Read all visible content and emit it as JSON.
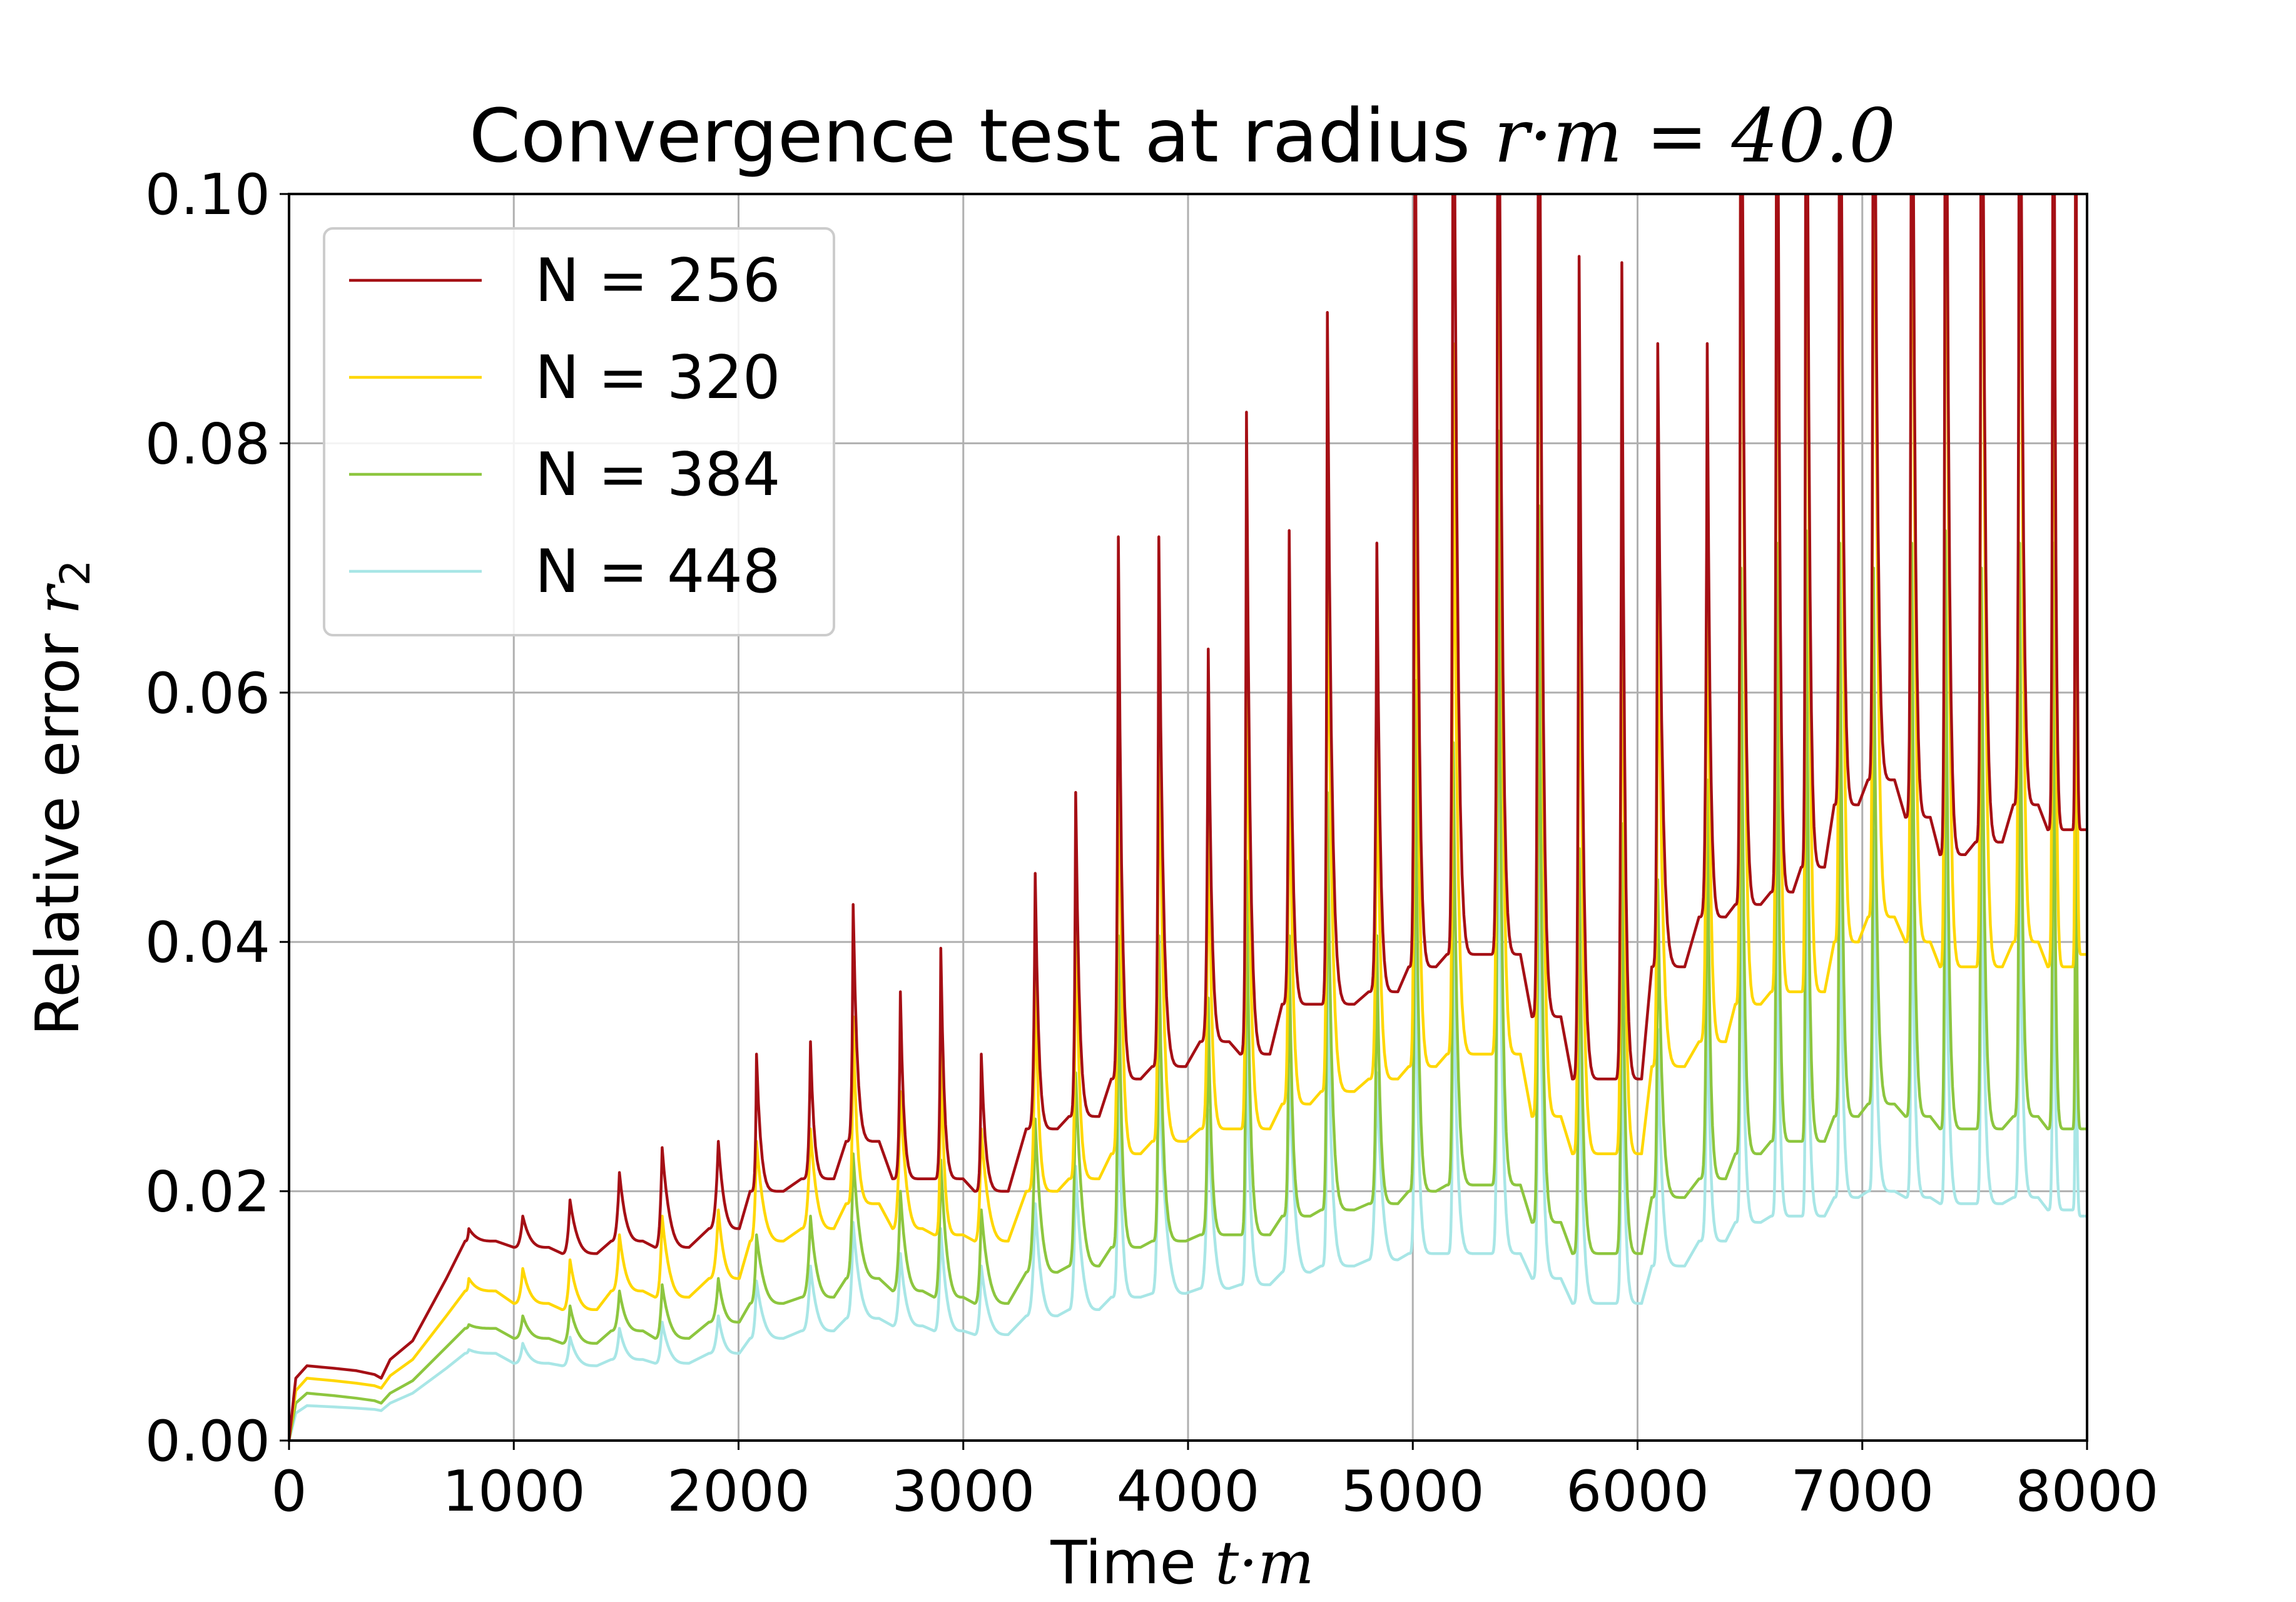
{
  "chart_data": {
    "type": "line",
    "title": {
      "prefix": "Convergence test at radius ",
      "math": "r·m = 40.0"
    },
    "xlabel": {
      "text": "Time ",
      "math": "t·m"
    },
    "ylabel": {
      "text": "Relative error ",
      "math": "r",
      "sub": "2"
    },
    "xlim": [
      0,
      8000
    ],
    "ylim": [
      0,
      0.1
    ],
    "xticks": [
      "0",
      "1000",
      "2000",
      "3000",
      "4000",
      "5000",
      "6000",
      "7000",
      "8000"
    ],
    "yticks": [
      "0.00",
      "0.02",
      "0.04",
      "0.06",
      "0.08",
      "0.10"
    ],
    "grid": true,
    "legend_position": "top-left",
    "x_peaks": [
      800,
      1040,
      1250,
      1470,
      1660,
      1910,
      2080,
      2320,
      2510,
      2720,
      2900,
      3080,
      3320,
      3500,
      3690,
      3870,
      4090,
      4260,
      4450,
      4620,
      4840,
      5010,
      5180,
      5380,
      5560,
      5740,
      5930,
      6090,
      6310,
      6460,
      6620,
      6750,
      6900,
      7050,
      7220,
      7370,
      7530,
      7700,
      7850,
      7950
    ],
    "series": [
      {
        "name": "N = 256",
        "color": "#a50f15",
        "initial": [
          [
            0,
            0.0
          ],
          [
            30,
            0.005
          ],
          [
            80,
            0.006
          ],
          [
            200,
            0.0058
          ],
          [
            300,
            0.0056
          ],
          [
            380,
            0.0053
          ],
          [
            410,
            0.005
          ],
          [
            450,
            0.0065
          ],
          [
            550,
            0.008
          ],
          [
            700,
            0.013
          ]
        ],
        "peaks": [
          0.017,
          0.018,
          0.0193,
          0.0215,
          0.0235,
          0.024,
          0.031,
          0.032,
          0.043,
          0.036,
          0.0395,
          0.031,
          0.0455,
          0.052,
          0.0725,
          0.0725,
          0.0635,
          0.0825,
          0.073,
          0.0905,
          0.072,
          0.115,
          0.13,
          0.135,
          0.135,
          0.095,
          0.0945,
          0.088,
          0.088,
          0.14,
          0.14,
          0.14,
          0.14,
          0.14,
          0.14,
          0.14,
          0.14,
          0.14,
          0.14,
          0.14
        ],
        "troughs": [
          0.016,
          0.0155,
          0.015,
          0.016,
          0.0155,
          0.017,
          0.02,
          0.021,
          0.024,
          0.021,
          0.021,
          0.02,
          0.025,
          0.026,
          0.029,
          0.03,
          0.032,
          0.031,
          0.035,
          0.035,
          0.036,
          0.038,
          0.039,
          0.039,
          0.034,
          0.029,
          0.029,
          0.038,
          0.042,
          0.043,
          0.044,
          0.046,
          0.051,
          0.053,
          0.05,
          0.047,
          0.048,
          0.051,
          0.049,
          0.049
        ],
        "final": 0.049
      },
      {
        "name": "N = 320",
        "color": "#ffd700",
        "initial": [
          [
            0,
            0.0
          ],
          [
            30,
            0.004
          ],
          [
            80,
            0.005
          ],
          [
            200,
            0.0048
          ],
          [
            300,
            0.0046
          ],
          [
            380,
            0.0044
          ],
          [
            410,
            0.0042
          ],
          [
            450,
            0.0052
          ],
          [
            550,
            0.0065
          ],
          [
            700,
            0.01
          ]
        ],
        "peaks": [
          0.013,
          0.0138,
          0.0145,
          0.0165,
          0.018,
          0.0185,
          0.024,
          0.025,
          0.034,
          0.028,
          0.032,
          0.025,
          0.038,
          0.0435,
          0.061,
          0.061,
          0.053,
          0.069,
          0.0605,
          0.076,
          0.0595,
          0.094,
          0.088,
          0.13,
          0.13,
          0.0775,
          0.08,
          0.073,
          0.0785,
          0.135,
          0.135,
          0.135,
          0.135,
          0.135,
          0.135,
          0.135,
          0.135,
          0.135,
          0.135,
          0.135
        ],
        "troughs": [
          0.012,
          0.011,
          0.0105,
          0.012,
          0.0115,
          0.013,
          0.016,
          0.017,
          0.019,
          0.017,
          0.0165,
          0.016,
          0.02,
          0.021,
          0.023,
          0.024,
          0.025,
          0.025,
          0.027,
          0.028,
          0.029,
          0.03,
          0.031,
          0.031,
          0.026,
          0.023,
          0.023,
          0.03,
          0.032,
          0.035,
          0.036,
          0.036,
          0.04,
          0.042,
          0.04,
          0.038,
          0.038,
          0.04,
          0.038,
          0.038
        ],
        "final": 0.039
      },
      {
        "name": "N = 384",
        "color": "#8dc63f",
        "initial": [
          [
            0,
            0.0
          ],
          [
            30,
            0.003
          ],
          [
            80,
            0.0038
          ],
          [
            200,
            0.0036
          ],
          [
            300,
            0.0034
          ],
          [
            380,
            0.0032
          ],
          [
            410,
            0.003
          ],
          [
            450,
            0.0038
          ],
          [
            550,
            0.0048
          ],
          [
            700,
            0.0075
          ]
        ],
        "peaks": [
          0.0093,
          0.01,
          0.0108,
          0.012,
          0.0125,
          0.013,
          0.0165,
          0.018,
          0.023,
          0.02,
          0.0225,
          0.0185,
          0.0258,
          0.0295,
          0.0405,
          0.0405,
          0.0355,
          0.0465,
          0.0405,
          0.052,
          0.0405,
          0.061,
          0.056,
          0.081,
          0.075,
          0.0475,
          0.0495,
          0.045,
          0.053,
          0.07,
          0.072,
          0.073,
          0.072,
          0.07,
          0.072,
          0.073,
          0.07,
          0.072,
          0.072,
          0.072
        ],
        "troughs": [
          0.009,
          0.0082,
          0.0078,
          0.0088,
          0.0082,
          0.0095,
          0.011,
          0.0115,
          0.013,
          0.012,
          0.0115,
          0.011,
          0.0135,
          0.014,
          0.0155,
          0.016,
          0.0165,
          0.0165,
          0.018,
          0.0185,
          0.019,
          0.02,
          0.0205,
          0.0205,
          0.0175,
          0.015,
          0.015,
          0.0195,
          0.021,
          0.023,
          0.024,
          0.024,
          0.026,
          0.027,
          0.026,
          0.025,
          0.025,
          0.026,
          0.025,
          0.025
        ],
        "final": 0.025
      },
      {
        "name": "N = 448",
        "color": "#a8e6e6",
        "initial": [
          [
            0,
            0.0
          ],
          [
            30,
            0.0022
          ],
          [
            80,
            0.0028
          ],
          [
            200,
            0.0027
          ],
          [
            300,
            0.0026
          ],
          [
            380,
            0.0025
          ],
          [
            410,
            0.0024
          ],
          [
            450,
            0.003
          ],
          [
            550,
            0.0038
          ],
          [
            700,
            0.0058
          ]
        ],
        "peaks": [
          0.0073,
          0.0078,
          0.0083,
          0.009,
          0.0095,
          0.01,
          0.0128,
          0.014,
          0.0175,
          0.015,
          0.017,
          0.014,
          0.019,
          0.022,
          0.0305,
          0.03,
          0.0265,
          0.034,
          0.03,
          0.0385,
          0.0295,
          0.0445,
          0.04,
          0.061,
          0.0545,
          0.035,
          0.0365,
          0.033,
          0.0385,
          0.05,
          0.052,
          0.051,
          0.05,
          0.049,
          0.051,
          0.05,
          0.049,
          0.05,
          0.0505,
          0.0505
        ],
        "troughs": [
          0.007,
          0.0062,
          0.006,
          0.0065,
          0.0062,
          0.007,
          0.0082,
          0.0088,
          0.0098,
          0.0092,
          0.0088,
          0.0085,
          0.01,
          0.0105,
          0.0115,
          0.0118,
          0.0122,
          0.0125,
          0.0135,
          0.014,
          0.0145,
          0.015,
          0.015,
          0.015,
          0.013,
          0.011,
          0.011,
          0.014,
          0.016,
          0.0175,
          0.018,
          0.018,
          0.0195,
          0.02,
          0.0195,
          0.019,
          0.019,
          0.0195,
          0.0185,
          0.0185
        ],
        "final": 0.018
      }
    ]
  }
}
